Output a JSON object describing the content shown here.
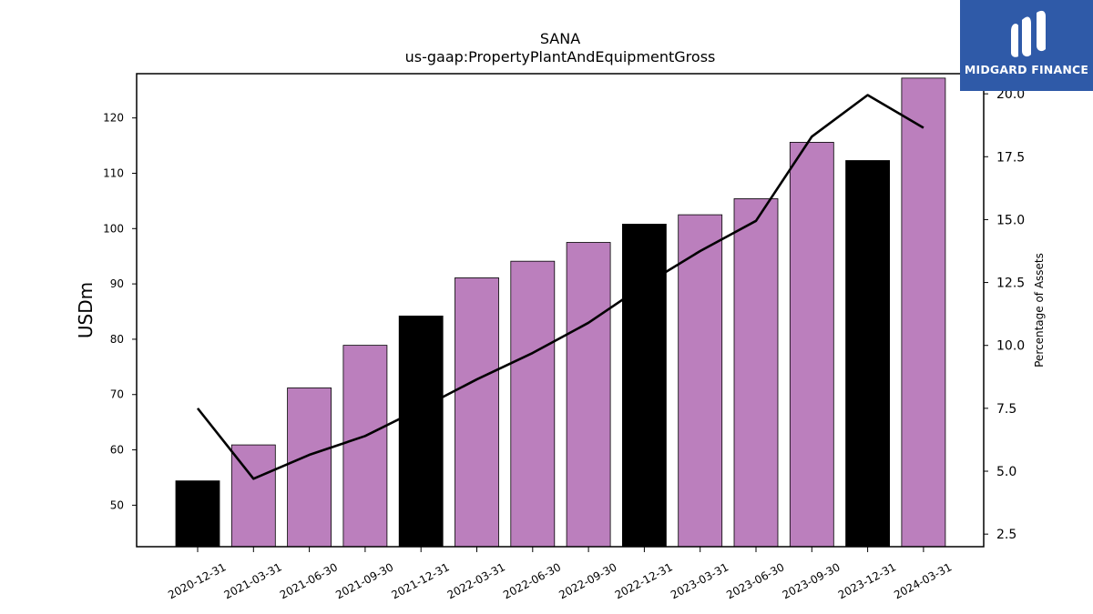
{
  "chart_data": {
    "type": "bar",
    "title": "SANA",
    "subtitle": "us-gaap:PropertyPlantAndEquipmentGross",
    "ylabel": "USDm",
    "y2label": "Percentage of Assets",
    "ylim": [
      42.5,
      128
    ],
    "y2lim": [
      2,
      20.8
    ],
    "yticks": [
      50,
      60,
      70,
      80,
      90,
      100,
      110,
      120
    ],
    "y2ticks": [
      "2.5",
      "5.0",
      "7.5",
      "10.0",
      "12.5",
      "15.0",
      "17.5",
      "20.0"
    ],
    "categories": [
      "2020-12-31",
      "2021-03-31",
      "2021-06-30",
      "2021-09-30",
      "2021-12-31",
      "2022-03-31",
      "2022-06-30",
      "2022-09-30",
      "2022-12-31",
      "2023-03-31",
      "2023-06-30",
      "2023-09-30",
      "2023-12-31",
      "2024-03-31"
    ],
    "values": [
      54.4,
      60.9,
      71.2,
      78.9,
      84.2,
      91.1,
      94.1,
      97.5,
      100.8,
      102.5,
      105.4,
      115.6,
      112.3,
      127.2
    ],
    "bar_colors": [
      "#000000",
      "#bb7fbd",
      "#bb7fbd",
      "#bb7fbd",
      "#000000",
      "#bb7fbd",
      "#bb7fbd",
      "#bb7fbd",
      "#000000",
      "#bb7fbd",
      "#bb7fbd",
      "#bb7fbd",
      "#000000",
      "#bb7fbd"
    ],
    "line_series": {
      "axis": "right",
      "color": "#000000",
      "values": [
        7.5,
        4.7,
        5.65,
        6.4,
        7.5,
        8.65,
        9.7,
        10.9,
        12.4,
        13.75,
        14.95,
        18.3,
        19.95,
        18.65
      ]
    },
    "grid": false,
    "legend": "none"
  },
  "logo": {
    "text": "MIDGARD FINANCE",
    "color": "#2f5aa8"
  }
}
